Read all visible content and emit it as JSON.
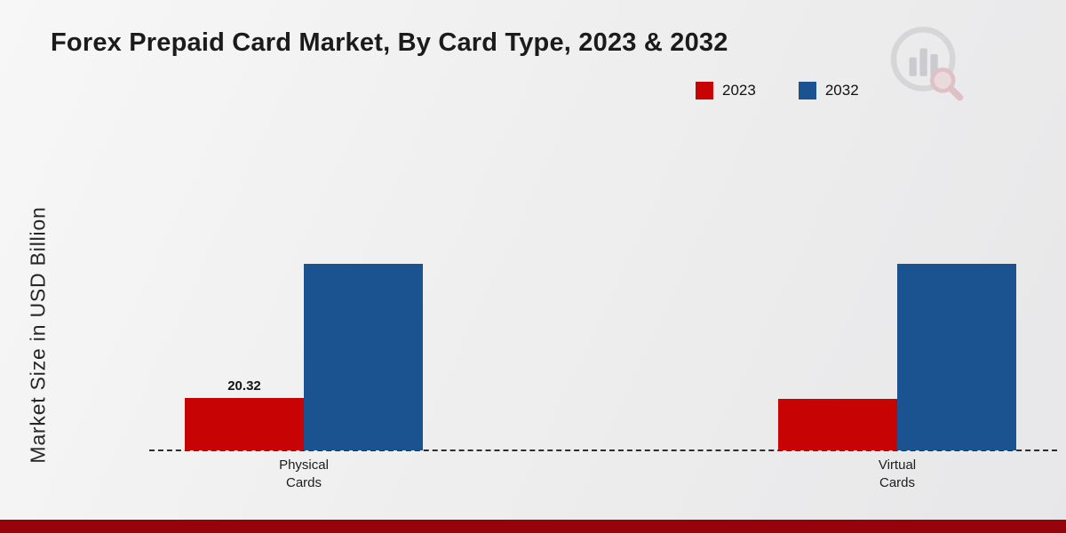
{
  "header": {
    "title": "Forex Prepaid Card Market, By Card Type, 2023 & 2032"
  },
  "axes": {
    "y_label": "Market Size in USD Billion"
  },
  "legend": {
    "items": [
      {
        "label": "2023",
        "color": "#c80303"
      },
      {
        "label": "2032",
        "color": "#1b5290"
      }
    ]
  },
  "chart_data": {
    "type": "bar",
    "title": "Forex Prepaid Card Market, By Card Type, 2023 & 2032",
    "xlabel": "",
    "ylabel": "Market Size in USD Billion",
    "categories": [
      "Physical Cards",
      "Virtual Cards"
    ],
    "series": [
      {
        "name": "2023",
        "color": "#c80303",
        "values": [
          20.32,
          20.1
        ]
      },
      {
        "name": "2032",
        "color": "#1b5290",
        "values": [
          72.4,
          72.4
        ]
      }
    ],
    "value_labels": [
      {
        "series": "2023",
        "category": "Physical Cards",
        "text": "20.32"
      }
    ],
    "ylim": [
      0,
      80
    ],
    "grid": false,
    "legend_position": "top-right",
    "baseline_style": "dashed"
  },
  "branding": {
    "footer_bar_color": "#96030a",
    "watermark_name": "market-research-circle-logo"
  }
}
